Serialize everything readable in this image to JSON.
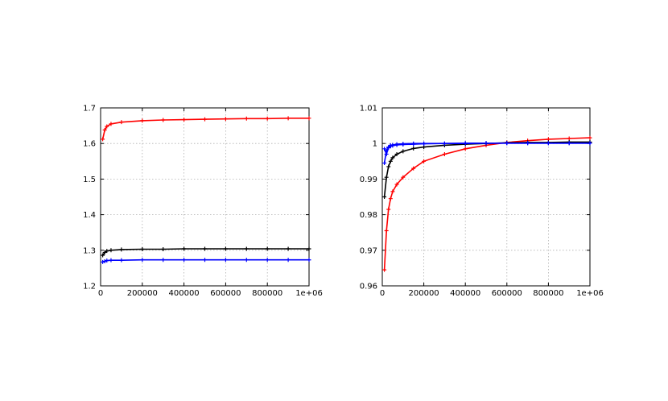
{
  "chart_data": [
    {
      "type": "line",
      "title": "",
      "xlabel": "",
      "ylabel": "",
      "xlim": [
        0,
        1000000
      ],
      "ylim": [
        1.2,
        1.7
      ],
      "grid": true,
      "x_ticks": [
        0,
        200000,
        400000,
        600000,
        800000,
        1000000
      ],
      "x_tick_labels": [
        "0",
        "200000",
        "400000",
        "600000",
        "800000",
        "1e+06"
      ],
      "y_ticks": [
        1.2,
        1.3,
        1.4,
        1.5,
        1.6,
        1.7
      ],
      "y_tick_labels": [
        "1.2",
        "1.3",
        "1.4",
        "1.5",
        "1.6",
        "1.7"
      ],
      "series": [
        {
          "color": "#ff0000",
          "marker": "+",
          "x": [
            10000,
            20000,
            30000,
            50000,
            100000,
            200000,
            300000,
            400000,
            500000,
            600000,
            700000,
            800000,
            900000,
            1000000
          ],
          "y": [
            1.612,
            1.638,
            1.648,
            1.655,
            1.66,
            1.664,
            1.666,
            1.667,
            1.668,
            1.669,
            1.67,
            1.67,
            1.671,
            1.671
          ]
        },
        {
          "color": "#000000",
          "marker": "+",
          "x": [
            10000,
            20000,
            30000,
            50000,
            100000,
            200000,
            300000,
            400000,
            500000,
            600000,
            700000,
            800000,
            900000,
            1000000
          ],
          "y": [
            1.286,
            1.294,
            1.298,
            1.3,
            1.302,
            1.303,
            1.303,
            1.304,
            1.304,
            1.304,
            1.304,
            1.304,
            1.304,
            1.304
          ]
        },
        {
          "color": "#0000ff",
          "marker": "+",
          "x": [
            10000,
            20000,
            30000,
            50000,
            100000,
            200000,
            300000,
            400000,
            500000,
            600000,
            700000,
            800000,
            900000,
            1000000
          ],
          "y": [
            1.267,
            1.269,
            1.271,
            1.272,
            1.272,
            1.273,
            1.273,
            1.273,
            1.273,
            1.273,
            1.273,
            1.273,
            1.273,
            1.273
          ]
        }
      ]
    },
    {
      "type": "line",
      "title": "",
      "xlabel": "",
      "ylabel": "",
      "xlim": [
        0,
        1000000
      ],
      "ylim": [
        0.96,
        1.01
      ],
      "grid": true,
      "x_ticks": [
        0,
        200000,
        400000,
        600000,
        800000,
        1000000
      ],
      "x_tick_labels": [
        "0",
        "200000",
        "400000",
        "600000",
        "800000",
        "1e+06"
      ],
      "y_ticks": [
        0.96,
        0.97,
        0.98,
        0.99,
        1.0,
        1.01
      ],
      "y_tick_labels": [
        "0.96",
        "0.97",
        "0.98",
        "0.99",
        "1",
        "1.01"
      ],
      "series": [
        {
          "color": "#ff0000",
          "marker": "+",
          "x": [
            10000,
            20000,
            30000,
            40000,
            50000,
            70000,
            100000,
            150000,
            200000,
            300000,
            400000,
            500000,
            600000,
            700000,
            800000,
            900000,
            1000000
          ],
          "y": [
            0.9645,
            0.9755,
            0.9815,
            0.9845,
            0.9865,
            0.9885,
            0.9905,
            0.993,
            0.995,
            0.997,
            0.9985,
            0.9995,
            1.0003,
            1.0008,
            1.0012,
            1.0014,
            1.0016
          ]
        },
        {
          "color": "#000000",
          "marker": "+",
          "x": [
            10000,
            20000,
            30000,
            40000,
            50000,
            70000,
            100000,
            150000,
            200000,
            300000,
            400000,
            500000,
            600000,
            700000,
            800000,
            900000,
            1000000
          ],
          "y": [
            0.985,
            0.9905,
            0.9935,
            0.995,
            0.996,
            0.997,
            0.9978,
            0.9986,
            0.999,
            0.9995,
            0.9998,
            1.0,
            1.0002,
            1.0003,
            1.0003,
            1.0004,
            1.0004
          ]
        },
        {
          "color": "#0000ff",
          "marker": "+",
          "x": [
            10000,
            20000,
            30000,
            40000,
            50000,
            70000,
            100000,
            150000,
            200000,
            300000,
            400000,
            500000,
            600000,
            700000,
            800000,
            900000,
            1000000
          ],
          "y": [
            0.9945,
            0.998,
            0.9988,
            0.9992,
            0.9994,
            0.9996,
            0.9997,
            0.9998,
            0.9999,
            1.0,
            1.0,
            1.0001,
            1.0001,
            1.0001,
            1.0001,
            1.0001,
            1.0001
          ]
        },
        {
          "color": "#0000ff",
          "marker": "+",
          "x": [
            10000,
            20000,
            30000,
            40000,
            50000,
            70000,
            100000,
            150000,
            200000,
            300000,
            400000,
            500000,
            600000,
            700000,
            800000,
            900000,
            1000000
          ],
          "y": [
            0.9985,
            0.997,
            0.999,
            0.9995,
            0.9996,
            0.9998,
            0.9999,
            1.0,
            1.0,
            1.0,
            1.0001,
            1.0001,
            1.0001,
            1.0001,
            1.0001,
            1.0001,
            1.0001
          ]
        }
      ]
    }
  ]
}
